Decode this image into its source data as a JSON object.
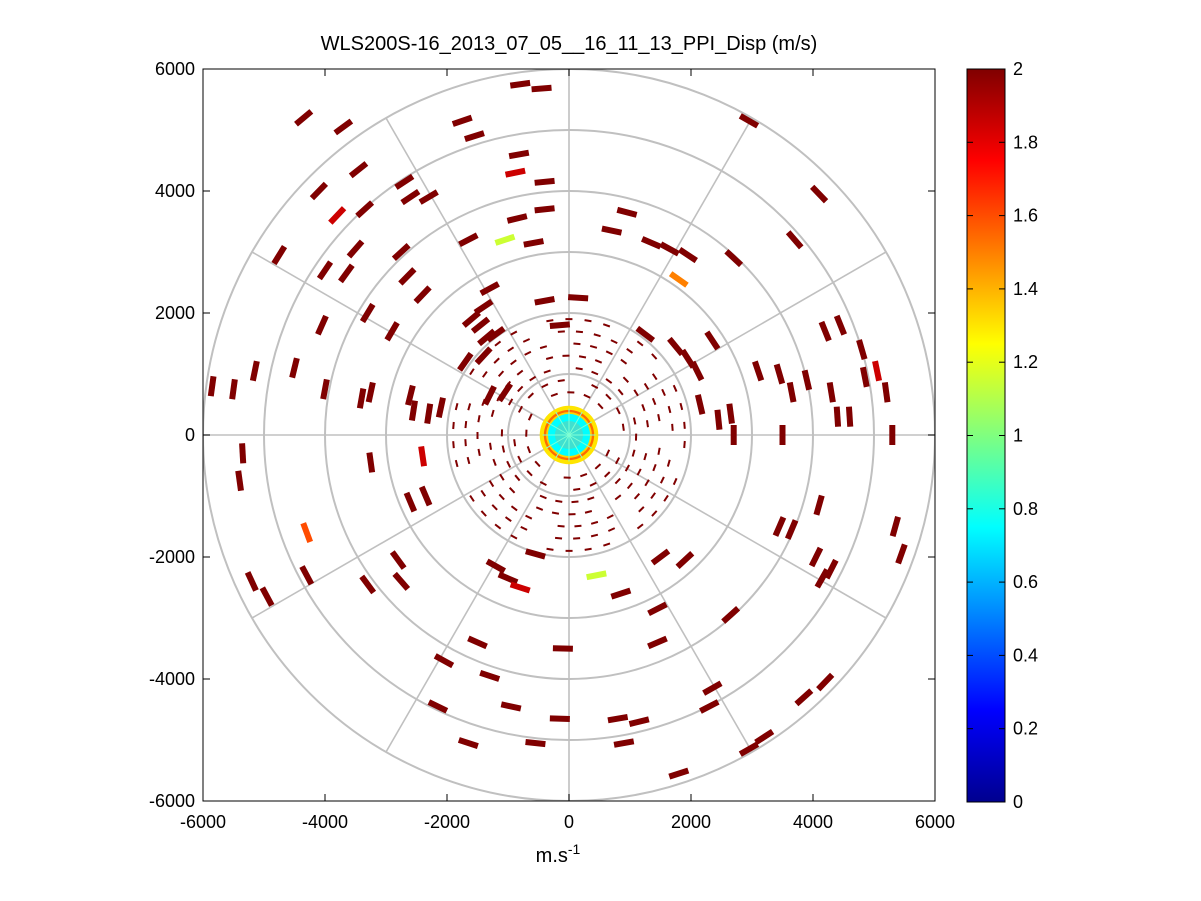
{
  "chart_data": {
    "type": "scatter",
    "title": "WLS200S-16_2013_07_05__16_11_13_PPI_Disp (m/s)",
    "xlabel": "m.s",
    "xlabel_superscript": "-1",
    "ylabel": "",
    "xlim": [
      -6000,
      6000
    ],
    "ylim": [
      -6000,
      6000
    ],
    "x_ticks": [
      -6000,
      -4000,
      -2000,
      0,
      2000,
      4000,
      6000
    ],
    "y_ticks": [
      6000,
      4000,
      2000,
      0,
      -2000,
      -4000,
      -6000
    ],
    "x_tick_labels": [
      "-6000",
      "-4000",
      "-2000",
      "0",
      "2000",
      "4000",
      "6000"
    ],
    "y_tick_labels": [
      "6000",
      "4000",
      "2000",
      "0",
      "-2000",
      "-4000",
      "-6000"
    ],
    "polar_grid": {
      "rings_m": [
        1000,
        2000,
        3000,
        4000,
        5000,
        6000
      ],
      "spokes_deg": [
        0,
        30,
        60,
        90,
        120,
        150,
        180,
        210,
        240,
        270,
        300,
        330
      ]
    },
    "colorbar": {
      "range": [
        0,
        2
      ],
      "ticks": [
        0,
        0.2,
        0.4,
        0.6,
        0.8,
        1,
        1.2,
        1.4,
        1.6,
        1.8,
        2
      ],
      "tick_labels": [
        "0",
        "0.2",
        "0.4",
        "0.6",
        "0.8",
        "1",
        "1.2",
        "1.4",
        "1.6",
        "1.8",
        "2"
      ],
      "colormap": "jet"
    },
    "center_disk": {
      "radius_m": 480,
      "value_inner": 0.75,
      "value_ring": 1.3
    },
    "points": [
      {
        "x": -4350,
        "y": 5200,
        "v": 2
      },
      {
        "x": -3700,
        "y": 5050,
        "v": 2
      },
      {
        "x": -3450,
        "y": 4350,
        "v": 2
      },
      {
        "x": -4100,
        "y": 4000,
        "v": 2
      },
      {
        "x": -3800,
        "y": 3600,
        "v": 1.85
      },
      {
        "x": -3350,
        "y": 3700,
        "v": 2
      },
      {
        "x": -2700,
        "y": 4150,
        "v": 2
      },
      {
        "x": -2600,
        "y": 3900,
        "v": 2
      },
      {
        "x": -2300,
        "y": 3900,
        "v": 2
      },
      {
        "x": -1750,
        "y": 5150,
        "v": 2
      },
      {
        "x": -1550,
        "y": 4900,
        "v": 2
      },
      {
        "x": -800,
        "y": 5750,
        "v": 2
      },
      {
        "x": -450,
        "y": 5680,
        "v": 2
      },
      {
        "x": -820,
        "y": 4600,
        "v": 2
      },
      {
        "x": -880,
        "y": 4300,
        "v": 1.85
      },
      {
        "x": -400,
        "y": 4150,
        "v": 2
      },
      {
        "x": -400,
        "y": 3700,
        "v": 2
      },
      {
        "x": -850,
        "y": 3550,
        "v": 2
      },
      {
        "x": -1050,
        "y": 3200,
        "v": 1.15
      },
      {
        "x": -580,
        "y": 3150,
        "v": 2
      },
      {
        "x": -1650,
        "y": 3200,
        "v": 2
      },
      {
        "x": -1300,
        "y": 2400,
        "v": 2
      },
      {
        "x": -2750,
        "y": 3000,
        "v": 2
      },
      {
        "x": -3500,
        "y": 3050,
        "v": 2
      },
      {
        "x": -3650,
        "y": 2650,
        "v": 2
      },
      {
        "x": -2650,
        "y": 2600,
        "v": 2
      },
      {
        "x": -2400,
        "y": 2300,
        "v": 2
      },
      {
        "x": -3300,
        "y": 2000,
        "v": 2
      },
      {
        "x": -4050,
        "y": 1800,
        "v": 2
      },
      {
        "x": -4750,
        "y": 2950,
        "v": 2
      },
      {
        "x": -4000,
        "y": 2700,
        "v": 2
      },
      {
        "x": -2900,
        "y": 1700,
        "v": 2
      },
      {
        "x": -1450,
        "y": 1800,
        "v": 2
      },
      {
        "x": -1350,
        "y": 1600,
        "v": 2
      },
      {
        "x": -1200,
        "y": 1650,
        "v": 2
      },
      {
        "x": -1400,
        "y": 1300,
        "v": 2
      },
      {
        "x": -1700,
        "y": 1200,
        "v": 2
      },
      {
        "x": -5850,
        "y": 800,
        "v": 2
      },
      {
        "x": -5500,
        "y": 750,
        "v": 2
      },
      {
        "x": -5150,
        "y": 1050,
        "v": 2
      },
      {
        "x": -4500,
        "y": 1100,
        "v": 2
      },
      {
        "x": -4000,
        "y": 750,
        "v": 2
      },
      {
        "x": -3400,
        "y": 600,
        "v": 2
      },
      {
        "x": -3250,
        "y": 700,
        "v": 2
      },
      {
        "x": -2600,
        "y": 650,
        "v": 2
      },
      {
        "x": -2550,
        "y": 400,
        "v": 2
      },
      {
        "x": -2300,
        "y": 350,
        "v": 2
      },
      {
        "x": -2100,
        "y": 450,
        "v": 2
      },
      {
        "x": -1300,
        "y": 650,
        "v": 2
      },
      {
        "x": -1050,
        "y": 700,
        "v": 2
      },
      {
        "x": -5350,
        "y": -300,
        "v": 2
      },
      {
        "x": -5400,
        "y": -750,
        "v": 2
      },
      {
        "x": -4300,
        "y": -1600,
        "v": 1.6
      },
      {
        "x": -5200,
        "y": -2400,
        "v": 2
      },
      {
        "x": -4950,
        "y": -2650,
        "v": 2
      },
      {
        "x": -4300,
        "y": -2300,
        "v": 2
      },
      {
        "x": -3300,
        "y": -2450,
        "v": 2
      },
      {
        "x": -2750,
        "y": -2400,
        "v": 2
      },
      {
        "x": -2800,
        "y": -2050,
        "v": 2
      },
      {
        "x": -2600,
        "y": -1100,
        "v": 2
      },
      {
        "x": -2350,
        "y": -1000,
        "v": 2
      },
      {
        "x": -3250,
        "y": -450,
        "v": 2
      },
      {
        "x": -2400,
        "y": -350,
        "v": 1.85
      },
      {
        "x": -1200,
        "y": -2150,
        "v": 2
      },
      {
        "x": -1000,
        "y": -2350,
        "v": 2
      },
      {
        "x": -800,
        "y": -2500,
        "v": 1.85
      },
      {
        "x": -550,
        "y": -1950,
        "v": 2
      },
      {
        "x": 450,
        "y": -2300,
        "v": 1.15
      },
      {
        "x": 850,
        "y": -2600,
        "v": 2
      },
      {
        "x": 1450,
        "y": -2850,
        "v": 2
      },
      {
        "x": 1500,
        "y": -2000,
        "v": 2
      },
      {
        "x": 1900,
        "y": -2050,
        "v": 2
      },
      {
        "x": 2650,
        "y": -2950,
        "v": 2
      },
      {
        "x": 1450,
        "y": -3400,
        "v": 2
      },
      {
        "x": -100,
        "y": -3500,
        "v": 2
      },
      {
        "x": -1500,
        "y": -3400,
        "v": 2
      },
      {
        "x": -2050,
        "y": -3700,
        "v": 2
      },
      {
        "x": -1300,
        "y": -3950,
        "v": 2
      },
      {
        "x": -2150,
        "y": -4450,
        "v": 2
      },
      {
        "x": -950,
        "y": -4450,
        "v": 2
      },
      {
        "x": -150,
        "y": -4650,
        "v": 2
      },
      {
        "x": 800,
        "y": -4650,
        "v": 2
      },
      {
        "x": 1150,
        "y": -4700,
        "v": 2
      },
      {
        "x": 2350,
        "y": -4150,
        "v": 2
      },
      {
        "x": 2300,
        "y": -4450,
        "v": 2
      },
      {
        "x": 3200,
        "y": -4950,
        "v": 2
      },
      {
        "x": 2950,
        "y": -5150,
        "v": 2
      },
      {
        "x": 3850,
        "y": -4300,
        "v": 2
      },
      {
        "x": 4200,
        "y": -4050,
        "v": 2
      },
      {
        "x": -1650,
        "y": -5050,
        "v": 2
      },
      {
        "x": -550,
        "y": -5050,
        "v": 2
      },
      {
        "x": 900,
        "y": -5050,
        "v": 2
      },
      {
        "x": 1800,
        "y": -5550,
        "v": 2
      },
      {
        "x": 4050,
        "y": -2000,
        "v": 2
      },
      {
        "x": 4300,
        "y": -2200,
        "v": 2
      },
      {
        "x": 4150,
        "y": -2350,
        "v": 2
      },
      {
        "x": 3450,
        "y": -1500,
        "v": 2
      },
      {
        "x": 3650,
        "y": -1550,
        "v": 2
      },
      {
        "x": 4100,
        "y": -1150,
        "v": 2
      },
      {
        "x": 5350,
        "y": -1500,
        "v": 2
      },
      {
        "x": 5450,
        "y": -1950,
        "v": 2
      },
      {
        "x": 5300,
        "y": 0,
        "v": 2
      },
      {
        "x": 4400,
        "y": 300,
        "v": 2
      },
      {
        "x": 4600,
        "y": 300,
        "v": 2
      },
      {
        "x": 4300,
        "y": 700,
        "v": 2
      },
      {
        "x": 4850,
        "y": 950,
        "v": 2
      },
      {
        "x": 5050,
        "y": 1050,
        "v": 1.85
      },
      {
        "x": 5200,
        "y": 700,
        "v": 2
      },
      {
        "x": 3900,
        "y": 900,
        "v": 2
      },
      {
        "x": 3650,
        "y": 700,
        "v": 2
      },
      {
        "x": 3450,
        "y": 1000,
        "v": 2
      },
      {
        "x": 4450,
        "y": 1800,
        "v": 2
      },
      {
        "x": 4200,
        "y": 1700,
        "v": 2
      },
      {
        "x": 4800,
        "y": 1400,
        "v": 2
      },
      {
        "x": 3100,
        "y": 1050,
        "v": 2
      },
      {
        "x": 2650,
        "y": 350,
        "v": 2
      },
      {
        "x": 2150,
        "y": 500,
        "v": 2
      },
      {
        "x": 2450,
        "y": 250,
        "v": 2
      },
      {
        "x": 2700,
        "y": 0,
        "v": 2
      },
      {
        "x": 3500,
        "y": 0,
        "v": 2
      },
      {
        "x": 1950,
        "y": 1250,
        "v": 2
      },
      {
        "x": 2100,
        "y": 1050,
        "v": 2
      },
      {
        "x": 1750,
        "y": 1450,
        "v": 2
      },
      {
        "x": 2350,
        "y": 1550,
        "v": 2
      },
      {
        "x": 1250,
        "y": 1650,
        "v": 2
      },
      {
        "x": 1950,
        "y": 2950,
        "v": 2
      },
      {
        "x": 1650,
        "y": 3050,
        "v": 2
      },
      {
        "x": 1800,
        "y": 2550,
        "v": 1.5
      },
      {
        "x": 1350,
        "y": 3150,
        "v": 2
      },
      {
        "x": 2700,
        "y": 2900,
        "v": 2
      },
      {
        "x": 3700,
        "y": 3200,
        "v": 2
      },
      {
        "x": 4100,
        "y": 3950,
        "v": 2
      },
      {
        "x": 2950,
        "y": 5150,
        "v": 2
      },
      {
        "x": 950,
        "y": 3650,
        "v": 2
      },
      {
        "x": 700,
        "y": 3350,
        "v": 2
      },
      {
        "x": 150,
        "y": 2250,
        "v": 2
      },
      {
        "x": -400,
        "y": 2200,
        "v": 2
      },
      {
        "x": -150,
        "y": 1800,
        "v": 2
      },
      {
        "x": -1600,
        "y": 1900,
        "v": 2
      },
      {
        "x": -1400,
        "y": 2100,
        "v": 2
      }
    ],
    "dashes": [
      {
        "r": 700,
        "n": 16,
        "off": 5
      },
      {
        "r": 900,
        "n": 20,
        "off": 11
      },
      {
        "r": 1100,
        "n": 26,
        "off": 3
      },
      {
        "r": 1300,
        "n": 30,
        "off": 17
      },
      {
        "r": 1500,
        "n": 34,
        "off": 8
      },
      {
        "r": 1700,
        "n": 36,
        "off": 21
      },
      {
        "r": 1900,
        "n": 38,
        "off": 13
      }
    ]
  }
}
